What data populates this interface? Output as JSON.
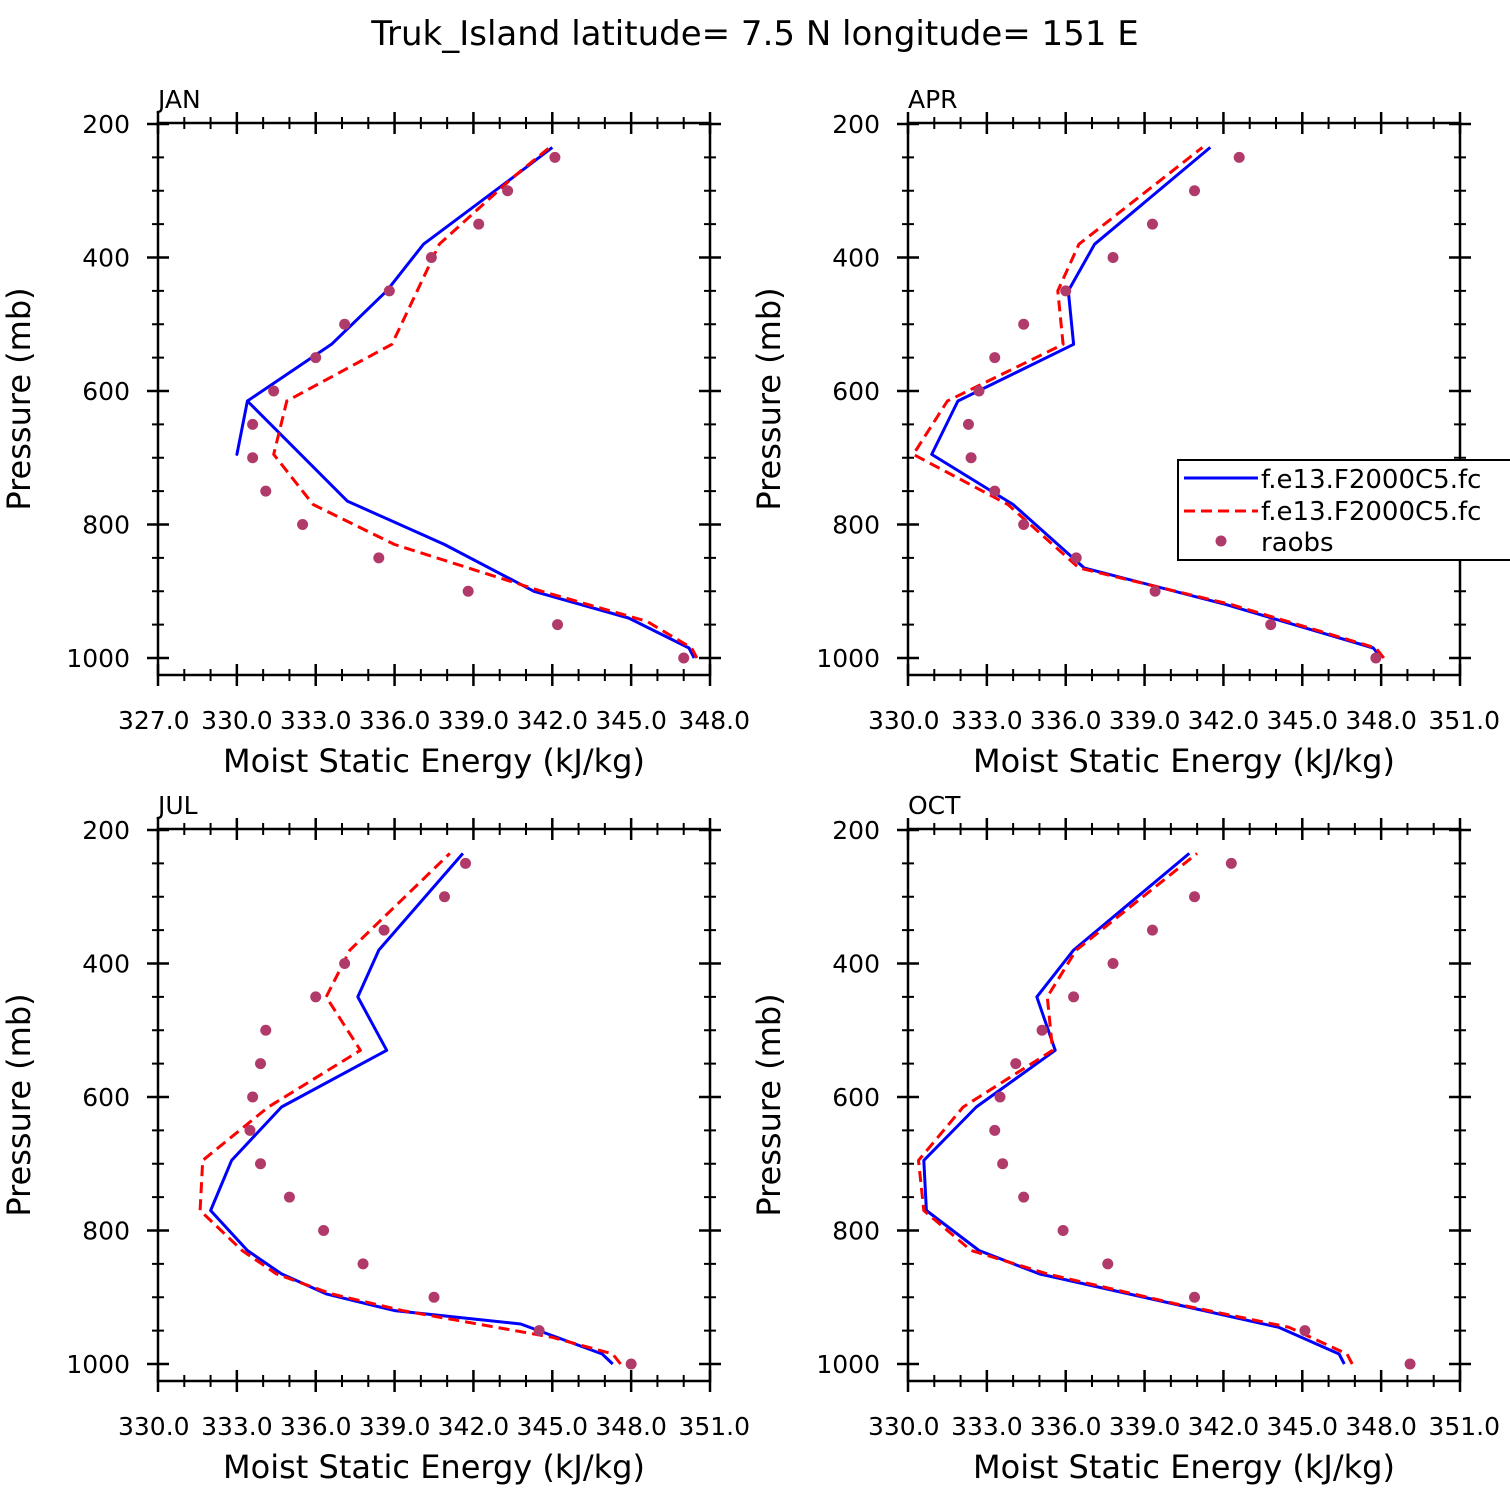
{
  "title": "Truk_Island  latitude= 7.5 N longitude= 151 E",
  "colors": {
    "series1": "#0000ff",
    "series2": "#ff0000",
    "raobs": "#b03a6a",
    "axis": "#000000"
  },
  "legend": {
    "entries": [
      "f.e13.F2000C5.fc",
      "f.e13.F2000C5.fc",
      "raobs"
    ]
  },
  "chart_data": [
    {
      "type": "line",
      "panel": "JAN",
      "xlabel": "Moist Static Energy (kJ/kg)",
      "ylabel": "Pressure (mb)",
      "xlim": [
        327.0,
        348.0
      ],
      "ylim": [
        1000,
        200
      ],
      "xticks": [
        327.0,
        330.0,
        333.0,
        336.0,
        339.0,
        342.0,
        345.0,
        348.0
      ],
      "xticklabels": [
        "327.0",
        "330.0",
        "333.0",
        "336.0",
        "339.0",
        "342.0",
        "345.0",
        "348.0"
      ],
      "yticks": [
        200,
        400,
        600,
        800,
        1000
      ],
      "yticklabels": [
        "200",
        "400",
        "600",
        "800",
        "1000"
      ],
      "series": [
        {
          "name": "f.e13.F2000C5.fc (solid)",
          "style": "solid",
          "color": "#0000ff",
          "x": [
            347.4,
            347.2,
            344.9,
            341.3,
            337.9,
            334.2,
            330.4,
            330.0,
            330.4,
            333.6,
            335.7,
            337.1,
            340.5,
            342.0
          ],
          "y": [
            1000,
            985,
            940,
            900,
            830,
            765,
            615,
            695,
            615,
            530,
            450,
            380,
            280,
            235
          ]
        },
        {
          "name": "f.e13.F2000C5.fc (dashed)",
          "style": "dashed",
          "color": "#ff0000",
          "x": [
            347.5,
            347.3,
            345.6,
            341.6,
            336.0,
            332.9,
            331.4,
            331.9,
            335.9,
            337.7,
            340.5,
            341.9
          ],
          "y": [
            1000,
            985,
            945,
            900,
            830,
            770,
            695,
            615,
            530,
            380,
            280,
            235
          ]
        }
      ],
      "raobs": {
        "x": [
          342.1,
          340.3,
          339.2,
          337.4,
          335.8,
          334.1,
          333.0,
          331.4,
          330.6,
          330.6,
          331.1,
          332.5,
          335.4,
          338.8,
          342.2,
          347.0
        ],
        "y": [
          250,
          300,
          350,
          400,
          450,
          500,
          550,
          600,
          650,
          700,
          750,
          800,
          850,
          900,
          950,
          1000
        ]
      }
    },
    {
      "type": "line",
      "panel": "APR",
      "xlabel": "Moist Static Energy (kJ/kg)",
      "ylabel": "Pressure (mb)",
      "xlim": [
        330.0,
        351.0
      ],
      "ylim": [
        1000,
        200
      ],
      "xticks": [
        330.0,
        333.0,
        336.0,
        339.0,
        342.0,
        345.0,
        348.0,
        351.0
      ],
      "xticklabels": [
        "330.0",
        "333.0",
        "336.0",
        "339.0",
        "342.0",
        "345.0",
        "348.0",
        "351.0"
      ],
      "yticks": [
        200,
        400,
        600,
        800,
        1000
      ],
      "yticklabels": [
        "200",
        "400",
        "600",
        "800",
        "1000"
      ],
      "series": [
        {
          "name": "f.e13.F2000C5.fc (solid)",
          "style": "solid",
          "color": "#0000ff",
          "x": [
            348.0,
            347.7,
            342.1,
            336.7,
            334.0,
            330.9,
            331.9,
            336.3,
            336.1,
            337.1,
            341.5
          ],
          "y": [
            1000,
            985,
            920,
            865,
            770,
            695,
            615,
            530,
            450,
            380,
            235
          ]
        },
        {
          "name": "f.e13.F2000C5.fc (dashed)",
          "style": "dashed",
          "color": "#ff0000",
          "x": [
            348.1,
            347.8,
            342.3,
            336.5,
            333.8,
            330.2,
            331.5,
            335.9,
            335.7,
            336.5,
            341.2
          ],
          "y": [
            1000,
            985,
            920,
            865,
            770,
            695,
            615,
            530,
            450,
            380,
            235
          ]
        }
      ],
      "raobs": {
        "x": [
          342.6,
          340.9,
          339.3,
          337.8,
          336.0,
          334.4,
          333.3,
          332.7,
          332.3,
          332.4,
          333.3,
          334.4,
          336.4,
          339.4,
          343.8,
          347.8
        ],
        "y": [
          250,
          300,
          350,
          400,
          450,
          500,
          550,
          600,
          650,
          700,
          750,
          800,
          850,
          900,
          950,
          1000
        ]
      }
    },
    {
      "type": "line",
      "panel": "JUL",
      "xlabel": "Moist Static Energy (kJ/kg)",
      "ylabel": "Pressure (mb)",
      "xlim": [
        330.0,
        351.0
      ],
      "ylim": [
        1000,
        200
      ],
      "xticks": [
        330.0,
        333.0,
        336.0,
        339.0,
        342.0,
        345.0,
        348.0,
        351.0
      ],
      "xticklabels": [
        "330.0",
        "333.0",
        "336.0",
        "339.0",
        "342.0",
        "345.0",
        "348.0",
        "351.0"
      ],
      "yticks": [
        200,
        400,
        600,
        800,
        1000
      ],
      "yticklabels": [
        "200",
        "400",
        "600",
        "800",
        "1000"
      ],
      "series": [
        {
          "name": "f.e13.F2000C5.fc (solid)",
          "style": "solid",
          "color": "#0000ff",
          "x": [
            347.3,
            346.9,
            343.8,
            339.0,
            336.4,
            334.7,
            333.4,
            332.0,
            332.8,
            334.7,
            338.7,
            337.6,
            338.4,
            341.6
          ],
          "y": [
            1000,
            985,
            940,
            920,
            895,
            865,
            830,
            770,
            695,
            615,
            530,
            450,
            380,
            235
          ]
        },
        {
          "name": "f.e13.F2000C5.fc (dashed)",
          "style": "dashed",
          "color": "#ff0000",
          "x": [
            347.6,
            347.3,
            345.0,
            339.3,
            336.6,
            334.5,
            333.2,
            331.6,
            331.7,
            334.2,
            337.7,
            336.4,
            337.3,
            341.1
          ],
          "y": [
            1000,
            985,
            960,
            920,
            895,
            865,
            830,
            770,
            695,
            615,
            530,
            450,
            380,
            235
          ]
        }
      ],
      "raobs": {
        "x": [
          341.7,
          340.9,
          338.6,
          337.1,
          336.0,
          334.1,
          333.9,
          333.6,
          333.5,
          333.9,
          335.0,
          336.3,
          337.8,
          340.5,
          344.5,
          348.0
        ],
        "y": [
          250,
          300,
          350,
          400,
          450,
          500,
          550,
          600,
          650,
          700,
          750,
          800,
          850,
          900,
          950,
          1000
        ]
      }
    },
    {
      "type": "line",
      "panel": "OCT",
      "xlabel": "Moist Static Energy (kJ/kg)",
      "ylabel": "Pressure (mb)",
      "xlim": [
        330.0,
        351.0
      ],
      "ylim": [
        1000,
        200
      ],
      "xticks": [
        330.0,
        333.0,
        336.0,
        339.0,
        342.0,
        345.0,
        348.0,
        351.0
      ],
      "xticklabels": [
        "330.0",
        "333.0",
        "336.0",
        "339.0",
        "342.0",
        "345.0",
        "348.0",
        "351.0"
      ],
      "yticks": [
        200,
        400,
        600,
        800,
        1000
      ],
      "yticklabels": [
        "200",
        "400",
        "600",
        "800",
        "1000"
      ],
      "series": [
        {
          "name": "f.e13.F2000C5.fc (solid)",
          "style": "solid",
          "color": "#0000ff",
          "x": [
            346.6,
            346.4,
            344.1,
            340.1,
            335.0,
            332.7,
            330.7,
            330.6,
            332.6,
            335.6,
            334.9,
            336.3,
            340.7
          ],
          "y": [
            1000,
            985,
            945,
            910,
            865,
            830,
            770,
            695,
            615,
            530,
            450,
            380,
            235
          ]
        },
        {
          "name": "f.e13.F2000C5.fc (dashed)",
          "style": "dashed",
          "color": "#ff0000",
          "x": [
            346.9,
            346.7,
            344.5,
            340.2,
            335.3,
            332.4,
            330.6,
            330.4,
            332.1,
            335.5,
            335.3,
            336.4,
            341.0
          ],
          "y": [
            1000,
            985,
            945,
            910,
            865,
            830,
            770,
            695,
            615,
            530,
            450,
            380,
            235
          ]
        }
      ],
      "raobs": {
        "x": [
          342.3,
          340.9,
          339.3,
          337.8,
          336.3,
          335.1,
          334.1,
          333.5,
          333.3,
          333.6,
          334.4,
          335.9,
          337.6,
          340.9,
          345.1,
          349.1
        ],
        "y": [
          250,
          300,
          350,
          400,
          450,
          500,
          550,
          600,
          650,
          700,
          750,
          800,
          850,
          900,
          950,
          1000
        ]
      }
    }
  ]
}
